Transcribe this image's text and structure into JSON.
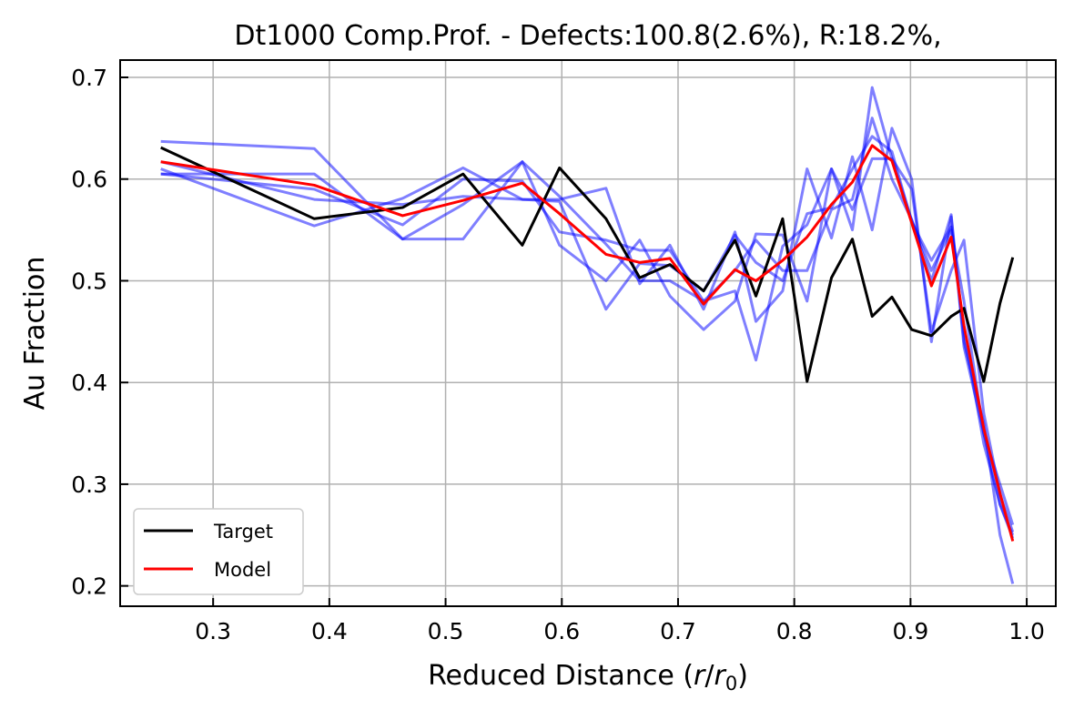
{
  "chart_data": {
    "type": "line",
    "title": "Dt1000 Comp.Prof. - Defects:100.8(2.6%), R:18.2%,",
    "xlabel": "Reduced Distance (r/r₀)",
    "ylabel": "Au Fraction",
    "xlim": [
      0.22,
      1.025
    ],
    "ylim": [
      0.18,
      0.717
    ],
    "xticks": [
      0.3,
      0.4,
      0.5,
      0.6,
      0.7,
      0.8,
      0.9,
      1.0
    ],
    "xtick_labels": [
      "0.3",
      "0.4",
      "0.5",
      "0.6",
      "0.7",
      "0.8",
      "0.9",
      "1.0"
    ],
    "yticks": [
      0.2,
      0.3,
      0.4,
      0.5,
      0.6,
      0.7
    ],
    "ytick_labels": [
      "0.2",
      "0.3",
      "0.4",
      "0.5",
      "0.6",
      "0.7"
    ],
    "grid": true,
    "legend": {
      "position": "lower-left",
      "entries": [
        {
          "label": "Target",
          "color": "#000000"
        },
        {
          "label": "Model",
          "color": "#ff0000"
        }
      ]
    },
    "series": [
      {
        "name": "Target",
        "color": "#000000",
        "x": [
          0.255,
          0.387,
          0.463,
          0.515,
          0.566,
          0.598,
          0.638,
          0.667,
          0.693,
          0.722,
          0.749,
          0.767,
          0.79,
          0.811,
          0.832,
          0.85,
          0.867,
          0.884,
          0.901,
          0.918,
          0.935,
          0.946,
          0.963,
          0.977,
          0.988
        ],
        "y": [
          0.631,
          0.561,
          0.572,
          0.605,
          0.535,
          0.611,
          0.561,
          0.503,
          0.516,
          0.49,
          0.54,
          0.485,
          0.561,
          0.401,
          0.503,
          0.541,
          0.465,
          0.484,
          0.452,
          0.446,
          0.465,
          0.473,
          0.401,
          0.478,
          0.523
        ]
      },
      {
        "name": "Model",
        "color": "#ff0000",
        "x": [
          0.255,
          0.387,
          0.463,
          0.515,
          0.566,
          0.598,
          0.638,
          0.667,
          0.693,
          0.722,
          0.749,
          0.767,
          0.79,
          0.811,
          0.832,
          0.85,
          0.867,
          0.884,
          0.901,
          0.918,
          0.935,
          0.946,
          0.963,
          0.977,
          0.988
        ],
        "y": [
          0.617,
          0.594,
          0.564,
          0.579,
          0.596,
          0.566,
          0.526,
          0.518,
          0.522,
          0.477,
          0.511,
          0.5,
          0.52,
          0.543,
          0.575,
          0.597,
          0.633,
          0.618,
          0.557,
          0.495,
          0.543,
          0.456,
          0.355,
          0.291,
          0.244
        ]
      },
      {
        "color": "#0000ff",
        "opacity": 0.5,
        "x": [
          0.255,
          0.387,
          0.463,
          0.515,
          0.566,
          0.598,
          0.638,
          0.667,
          0.693,
          0.722,
          0.749,
          0.767,
          0.79,
          0.811,
          0.832,
          0.85,
          0.867,
          0.884,
          0.901,
          0.918,
          0.935,
          0.946,
          0.963,
          0.977,
          0.988
        ],
        "y": [
          0.637,
          0.63,
          0.541,
          0.541,
          0.617,
          0.583,
          0.536,
          0.5,
          0.5,
          0.48,
          0.49,
          0.422,
          0.534,
          0.555,
          0.61,
          0.55,
          0.69,
          0.62,
          0.56,
          0.5,
          0.565,
          0.44,
          0.36,
          0.25,
          0.202
        ]
      },
      {
        "color": "#0000ff",
        "opacity": 0.5,
        "x": [
          0.255,
          0.387,
          0.463,
          0.515,
          0.566,
          0.598,
          0.638,
          0.667,
          0.693,
          0.722,
          0.749,
          0.767,
          0.79,
          0.811,
          0.832,
          0.85,
          0.867,
          0.884,
          0.901,
          0.918,
          0.935,
          0.946,
          0.963,
          0.977,
          0.988
        ],
        "y": [
          0.61,
          0.554,
          0.581,
          0.611,
          0.58,
          0.58,
          0.591,
          0.497,
          0.535,
          0.472,
          0.548,
          0.46,
          0.49,
          0.61,
          0.542,
          0.622,
          0.55,
          0.65,
          0.6,
          0.44,
          0.563,
          0.435,
          0.35,
          0.3,
          0.26
        ]
      },
      {
        "color": "#0000ff",
        "opacity": 0.5,
        "x": [
          0.255,
          0.387,
          0.463,
          0.515,
          0.566,
          0.598,
          0.638,
          0.667,
          0.693,
          0.722,
          0.749,
          0.767,
          0.79,
          0.811,
          0.832,
          0.85,
          0.867,
          0.884,
          0.901,
          0.918,
          0.935,
          0.946,
          0.963,
          0.977,
          0.988
        ],
        "y": [
          0.605,
          0.605,
          0.541,
          0.575,
          0.617,
          0.535,
          0.5,
          0.54,
          0.485,
          0.452,
          0.48,
          0.546,
          0.545,
          0.48,
          0.61,
          0.57,
          0.62,
          0.62,
          0.59,
          0.45,
          0.51,
          0.54,
          0.37,
          0.29,
          0.253
        ]
      },
      {
        "color": "#0000ff",
        "opacity": 0.5,
        "x": [
          0.255,
          0.387,
          0.463,
          0.515,
          0.566,
          0.598,
          0.638,
          0.667,
          0.693,
          0.722,
          0.749,
          0.767,
          0.79,
          0.811,
          0.832,
          0.85,
          0.867,
          0.884,
          0.901,
          0.918,
          0.935,
          0.946,
          0.963,
          0.977,
          0.988
        ],
        "y": [
          0.617,
          0.58,
          0.575,
          0.583,
          0.58,
          0.578,
          0.472,
          0.517,
          0.515,
          0.49,
          0.545,
          0.518,
          0.5,
          0.566,
          0.572,
          0.61,
          0.642,
          0.627,
          0.558,
          0.52,
          0.553,
          0.45,
          0.34,
          0.28,
          0.247
        ]
      },
      {
        "color": "#0000ff",
        "opacity": 0.5,
        "x": [
          0.255,
          0.387,
          0.463,
          0.515,
          0.566,
          0.598,
          0.638,
          0.667,
          0.693,
          0.722,
          0.749,
          0.767,
          0.79,
          0.811,
          0.832,
          0.85,
          0.867,
          0.884,
          0.901,
          0.918,
          0.935,
          0.946,
          0.963,
          0.977,
          0.988
        ],
        "y": [
          0.605,
          0.59,
          0.555,
          0.6,
          0.598,
          0.548,
          0.54,
          0.53,
          0.53,
          0.48,
          0.51,
          0.54,
          0.51,
          0.51,
          0.57,
          0.58,
          0.66,
          0.6,
          0.56,
          0.51,
          0.55,
          0.48,
          0.35,
          0.28,
          0.25
        ]
      }
    ]
  }
}
